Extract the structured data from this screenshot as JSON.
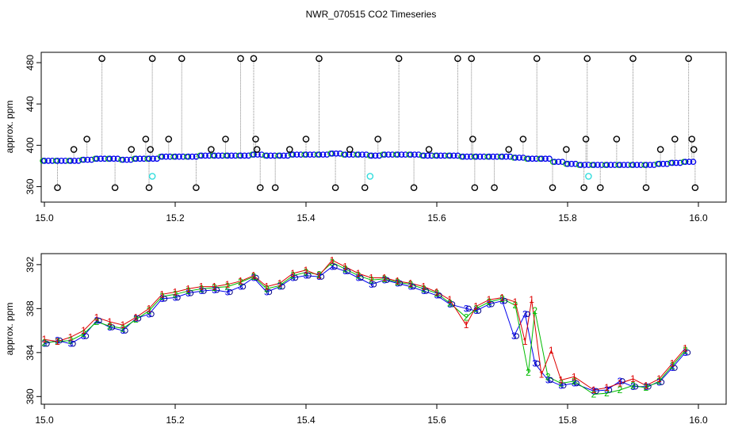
{
  "figure": {
    "title": "NWR_070515  CO2 Timeseries"
  },
  "colors": {
    "black": "#000000",
    "grey": "#888888",
    "blue": "#0000ee",
    "green": "#00bb00",
    "red": "#dd0000",
    "cyan": "#33dddd",
    "navy": "#000088"
  },
  "chart_data": [
    {
      "type": "scatter",
      "panel": "top",
      "xlabel": "",
      "ylabel": "approx. ppm",
      "xlim": [
        15.0,
        16.0
      ],
      "ylim": [
        345,
        490
      ],
      "xticks": [
        15.0,
        15.2,
        15.4,
        15.6,
        15.8,
        16.0
      ],
      "yticks": [
        360,
        400,
        440,
        480
      ],
      "series": [
        {
          "marker": "circle",
          "color": "blue",
          "x": [
            15.0,
            15.02,
            15.04,
            15.06,
            15.08,
            15.1,
            15.12,
            15.14,
            15.16,
            15.18,
            15.2,
            15.22,
            15.24,
            15.26,
            15.28,
            15.3,
            15.32,
            15.34,
            15.36,
            15.38,
            15.4,
            15.42,
            15.44,
            15.46,
            15.48,
            15.5,
            15.52,
            15.54,
            15.56,
            15.58,
            15.6,
            15.62,
            15.64,
            15.66,
            15.68,
            15.7,
            15.72,
            15.74,
            15.76,
            15.78,
            15.8,
            15.82,
            15.84,
            15.86,
            15.88,
            15.9,
            15.92,
            15.94,
            15.96,
            15.98
          ],
          "y": [
            385,
            385,
            385,
            386,
            387,
            387,
            386,
            387,
            387,
            389,
            389,
            389,
            390,
            390,
            390,
            390,
            391,
            390,
            390,
            391,
            391,
            391,
            392,
            391,
            391,
            390,
            391,
            391,
            391,
            390,
            390,
            390,
            389,
            389,
            389,
            389,
            388,
            387,
            387,
            384,
            382,
            381,
            381,
            381,
            381,
            381,
            381,
            382,
            383,
            384
          ]
        },
        {
          "marker": "circle-open",
          "color": "black",
          "x": [
            15.02,
            15.045,
            15.065,
            15.088,
            15.108,
            15.133,
            15.155,
            15.16,
            15.162,
            15.165,
            15.19,
            15.21,
            15.232,
            15.255,
            15.277,
            15.3,
            15.32,
            15.323,
            15.325,
            15.33,
            15.353,
            15.375,
            15.4,
            15.42,
            15.445,
            15.467,
            15.49,
            15.51,
            15.542,
            15.565,
            15.588,
            15.632,
            15.653,
            15.655,
            15.658,
            15.688,
            15.71,
            15.732,
            15.753,
            15.777,
            15.798,
            15.825,
            15.828,
            15.83,
            15.85,
            15.875,
            15.9,
            15.92,
            15.942,
            15.964,
            15.985,
            15.99,
            15.993,
            15.995
          ],
          "y": [
            359,
            396,
            406,
            484,
            359,
            396,
            406,
            359,
            396,
            484,
            406,
            484,
            359,
            396,
            406,
            484,
            484,
            406,
            396,
            359,
            359,
            396,
            406,
            484,
            359,
            396,
            359,
            406,
            484,
            359,
            396,
            484,
            484,
            406,
            359,
            359,
            396,
            406,
            484,
            359,
            396,
            359,
            406,
            484,
            359,
            406,
            484,
            359,
            396,
            406,
            484,
            406,
            396,
            359
          ]
        },
        {
          "marker": "circle",
          "color": "cyan",
          "x": [
            15.165,
            15.498,
            15.832
          ],
          "y": [
            370,
            370,
            370
          ]
        }
      ]
    },
    {
      "type": "scatter",
      "panel": "bottom",
      "xlabel": "",
      "ylabel": "approx. ppm",
      "xlim": [
        15.0,
        16.0
      ],
      "ylim": [
        379.3,
        393
      ],
      "xticks": [
        15.0,
        15.2,
        15.4,
        15.6,
        15.8,
        16.0
      ],
      "yticks": [
        380,
        384,
        388,
        392
      ],
      "series": [
        {
          "name": "1",
          "marker": "digit",
          "color": "red",
          "x": [
            15.0,
            15.02,
            15.04,
            15.06,
            15.08,
            15.1,
            15.12,
            15.14,
            15.16,
            15.18,
            15.2,
            15.22,
            15.24,
            15.26,
            15.28,
            15.3,
            15.32,
            15.34,
            15.36,
            15.38,
            15.4,
            15.42,
            15.44,
            15.46,
            15.48,
            15.5,
            15.52,
            15.54,
            15.56,
            15.58,
            15.6,
            15.62,
            15.645,
            15.66,
            15.68,
            15.7,
            15.72,
            15.735,
            15.745,
            15.76,
            15.775,
            15.79,
            15.81,
            15.84,
            15.86,
            15.88,
            15.9,
            15.92,
            15.94,
            15.96,
            15.98
          ],
          "y": [
            385.2,
            385.0,
            385.4,
            386.0,
            387.2,
            386.8,
            386.5,
            387.2,
            388.0,
            389.3,
            389.5,
            389.8,
            390.0,
            390.0,
            390.2,
            390.5,
            391.0,
            390.0,
            390.3,
            391.2,
            391.5,
            391.0,
            392.4,
            391.8,
            391.2,
            390.8,
            390.8,
            390.5,
            390.3,
            390.0,
            389.5,
            388.8,
            386.5,
            388.2,
            388.8,
            389.0,
            388.6,
            385.0,
            388.8,
            382.0,
            384.2,
            381.5,
            381.8,
            380.6,
            380.8,
            381.2,
            381.6,
            381.0,
            381.6,
            383.0,
            384.4
          ]
        },
        {
          "name": "2",
          "marker": "digit",
          "color": "green",
          "x": [
            15.0,
            15.02,
            15.04,
            15.06,
            15.08,
            15.1,
            15.12,
            15.14,
            15.16,
            15.18,
            15.2,
            15.22,
            15.24,
            15.26,
            15.28,
            15.3,
            15.32,
            15.34,
            15.36,
            15.38,
            15.4,
            15.42,
            15.44,
            15.46,
            15.48,
            15.5,
            15.52,
            15.54,
            15.56,
            15.58,
            15.6,
            15.62,
            15.645,
            15.66,
            15.68,
            15.7,
            15.72,
            15.74,
            15.75,
            15.77,
            15.79,
            15.81,
            15.84,
            15.86,
            15.88,
            15.9,
            15.92,
            15.94,
            15.96,
            15.98
          ],
          "y": [
            384.9,
            385.0,
            385.1,
            385.7,
            386.8,
            386.4,
            386.2,
            387.0,
            387.8,
            389.1,
            389.3,
            389.6,
            389.8,
            389.9,
            390.0,
            390.4,
            390.9,
            389.8,
            390.1,
            391.0,
            391.3,
            391.1,
            392.2,
            391.6,
            391.0,
            390.6,
            390.7,
            390.4,
            390.2,
            389.8,
            389.4,
            388.5,
            387.2,
            388.0,
            388.6,
            388.9,
            388.3,
            382.2,
            387.8,
            381.8,
            381.2,
            381.4,
            380.2,
            380.3,
            380.6,
            381.0,
            380.8,
            381.4,
            382.8,
            384.2
          ]
        },
        {
          "name": "3",
          "marker": "digit",
          "color": "blue",
          "x": [
            15.0,
            15.02,
            15.04,
            15.06,
            15.08,
            15.1,
            15.12,
            15.14,
            15.16,
            15.18,
            15.2,
            15.22,
            15.24,
            15.26,
            15.28,
            15.3,
            15.32,
            15.34,
            15.36,
            15.38,
            15.4,
            15.42,
            15.44,
            15.46,
            15.48,
            15.5,
            15.52,
            15.54,
            15.56,
            15.58,
            15.6,
            15.62,
            15.645,
            15.66,
            15.68,
            15.7,
            15.718,
            15.735,
            15.75,
            15.77,
            15.79,
            15.81,
            15.84,
            15.86,
            15.88,
            15.9,
            15.92,
            15.94,
            15.96,
            15.98
          ],
          "y": [
            384.8,
            385.1,
            384.8,
            385.5,
            386.9,
            386.3,
            386.0,
            387.1,
            387.5,
            388.9,
            389.0,
            389.4,
            389.6,
            389.7,
            389.5,
            390.0,
            390.8,
            389.5,
            390.0,
            390.8,
            391.0,
            390.9,
            391.8,
            391.4,
            390.8,
            390.2,
            390.6,
            390.3,
            390.0,
            389.6,
            389.2,
            388.4,
            388.0,
            387.8,
            388.4,
            388.7,
            385.5,
            387.5,
            383.0,
            381.5,
            381.0,
            381.2,
            380.5,
            380.6,
            381.4,
            380.9,
            380.9,
            381.3,
            382.6,
            384.0
          ]
        }
      ]
    }
  ]
}
